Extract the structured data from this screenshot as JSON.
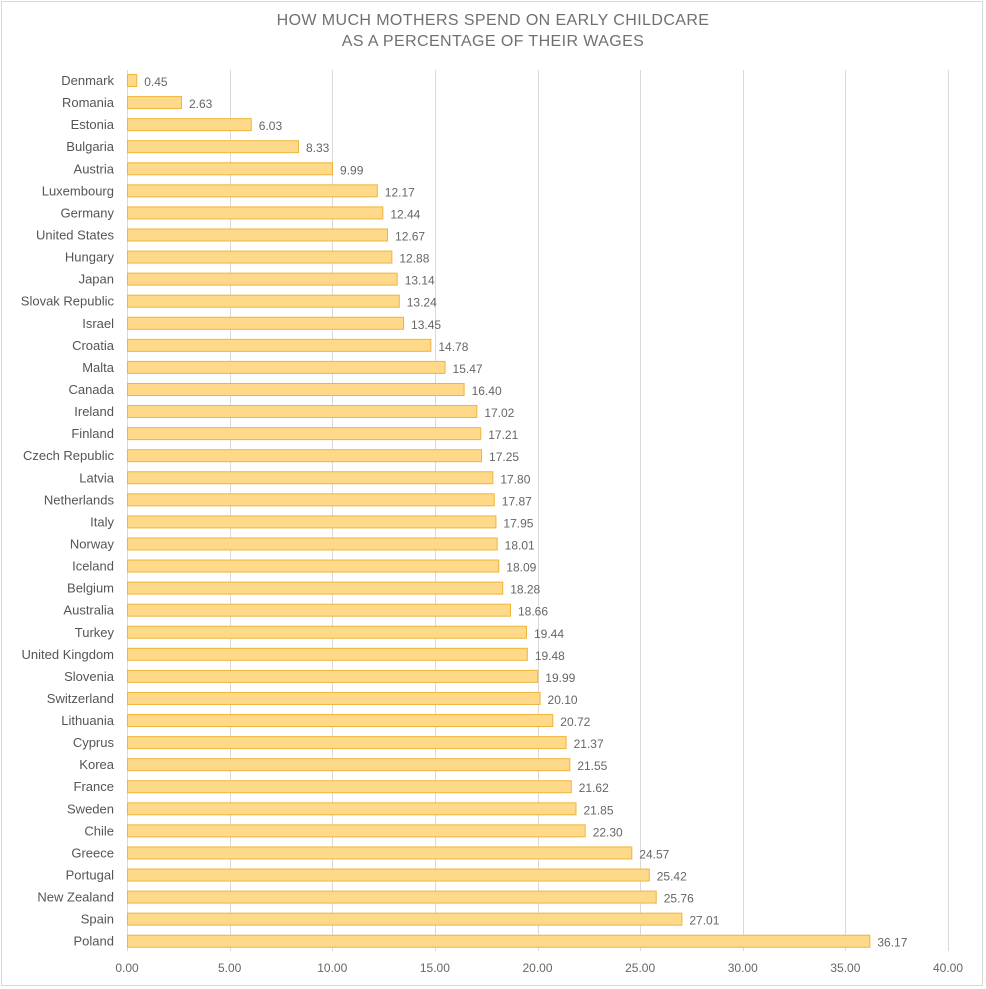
{
  "chart_data": {
    "type": "bar",
    "orientation": "horizontal",
    "title_line1": "HOW MUCH MOTHERS SPEND ON EARLY CHILDCARE",
    "title_line2": "AS A PERCENTAGE OF THEIR WAGES",
    "xlabel": "",
    "ylabel": "",
    "xlim": [
      0,
      40
    ],
    "grid": "vertical",
    "legend": "none",
    "bar_color": "#FFD98A",
    "bar_edge_color": "#F0B43A",
    "tick_values": [
      0,
      5,
      10,
      15,
      20,
      25,
      30,
      35,
      40
    ],
    "tick_labels": [
      "0.00",
      "5.00",
      "10.00",
      "15.00",
      "20.00",
      "25.00",
      "30.00",
      "35.00",
      "40.00"
    ],
    "categories": [
      "Denmark",
      "Romania",
      "Estonia",
      "Bulgaria",
      "Austria",
      "Luxembourg",
      "Germany",
      "United States",
      "Hungary",
      "Japan",
      "Slovak Republic",
      "Israel",
      "Croatia",
      "Malta",
      "Canada",
      "Ireland",
      "Finland",
      "Czech Republic",
      "Latvia",
      "Netherlands",
      "Italy",
      "Norway",
      "Iceland",
      "Belgium",
      "Australia",
      "Turkey",
      "United Kingdom",
      "Slovenia",
      "Switzerland",
      "Lithuania",
      "Cyprus",
      "Korea",
      "France",
      "Sweden",
      "Chile",
      "Greece",
      "Portugal",
      "New Zealand",
      "Spain",
      "Poland"
    ],
    "values": [
      0.45,
      2.63,
      6.03,
      8.33,
      9.99,
      12.17,
      12.44,
      12.67,
      12.88,
      13.14,
      13.24,
      13.45,
      14.78,
      15.47,
      16.4,
      17.02,
      17.21,
      17.25,
      17.8,
      17.87,
      17.95,
      18.01,
      18.09,
      18.28,
      18.66,
      19.44,
      19.48,
      19.99,
      20.1,
      20.72,
      21.37,
      21.55,
      21.62,
      21.85,
      22.3,
      24.57,
      25.42,
      25.76,
      27.01,
      36.17
    ],
    "value_labels": [
      "0.45",
      "2.63",
      "6.03",
      "8.33",
      "9.99",
      "12.17",
      "12.44",
      "12.67",
      "12.88",
      "13.14",
      "13.24",
      "13.45",
      "14.78",
      "15.47",
      "16.40",
      "17.02",
      "17.21",
      "17.25",
      "17.80",
      "17.87",
      "17.95",
      "18.01",
      "18.09",
      "18.28",
      "18.66",
      "19.44",
      "19.48",
      "19.99",
      "20.10",
      "20.72",
      "21.37",
      "21.55",
      "21.62",
      "21.85",
      "22.30",
      "24.57",
      "25.42",
      "25.76",
      "27.01",
      "36.17"
    ]
  }
}
